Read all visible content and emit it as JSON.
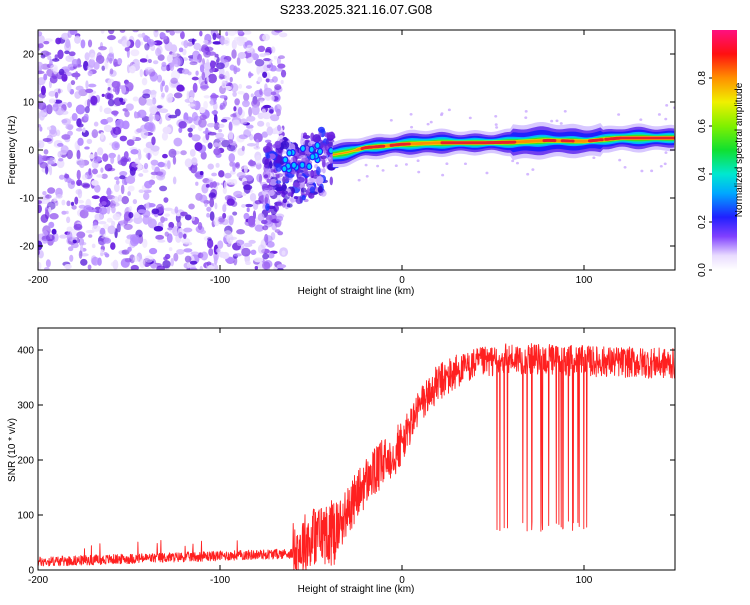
{
  "title": "S233.2025.321.16.07.G08",
  "colors": {
    "snr_line": "#ff2020",
    "ridge": "#e8202a",
    "background": "#ffffff"
  },
  "chart_data": [
    {
      "type": "heatmap",
      "xlabel": "Height of straight line (km)",
      "ylabel": "Frequency (Hz)",
      "xlim": [
        -200,
        150
      ],
      "ylim": [
        -25,
        25
      ],
      "x_ticks": [
        -200,
        -100,
        0,
        100
      ],
      "x_tick_labels": [
        "-200",
        "-100",
        "0",
        "100"
      ],
      "y_ticks": [
        -20,
        -10,
        0,
        10,
        20
      ],
      "y_tick_labels": [
        "-20",
        "-10",
        "0",
        "10",
        "20"
      ],
      "ridge": {
        "x": [
          -38,
          -30,
          -20,
          -10,
          0,
          20,
          40,
          60,
          80,
          100,
          120,
          150
        ],
        "freq": [
          -1,
          -0.5,
          0.5,
          0.8,
          1.2,
          1.5,
          1.5,
          1.6,
          2.0,
          1.8,
          2.5,
          2.5
        ]
      },
      "noise_region": {
        "x_range": [
          -200,
          -65
        ],
        "freq_range": [
          -25,
          25
        ]
      },
      "transition_region": {
        "x_range": [
          -75,
          -38
        ],
        "freq_range": [
          -12,
          5
        ]
      },
      "colorbar": {
        "label": "Normalized spectral amplitude",
        "range": [
          0,
          1
        ],
        "ticks": [
          0,
          0.2,
          0.4,
          0.6,
          0.8
        ],
        "tick_labels": [
          "0.0",
          "0.2",
          "0.4",
          "0.6",
          "0.8"
        ]
      }
    },
    {
      "type": "line",
      "xlabel": "Height of straight line (km)",
      "ylabel": "SNR (10 * v/v)",
      "xlim": [
        -200,
        150
      ],
      "ylim": [
        0,
        440
      ],
      "x_ticks": [
        -200,
        -100,
        0,
        100
      ],
      "x_tick_labels": [
        "-200",
        "-100",
        "0",
        "100"
      ],
      "y_ticks": [
        0,
        100,
        200,
        300,
        400
      ],
      "y_tick_labels": [
        "0",
        "100",
        "200",
        "300",
        "400"
      ],
      "trend": {
        "x": [
          -200,
          -60,
          -50,
          -35,
          -20,
          0,
          10,
          20,
          30,
          40,
          60,
          100,
          150
        ],
        "y": [
          15,
          30,
          60,
          80,
          160,
          230,
          300,
          340,
          360,
          375,
          385,
          380,
          375
        ]
      },
      "dropouts": {
        "x_range": [
          50,
          102
        ],
        "y": [
          70,
          90
        ]
      }
    }
  ]
}
